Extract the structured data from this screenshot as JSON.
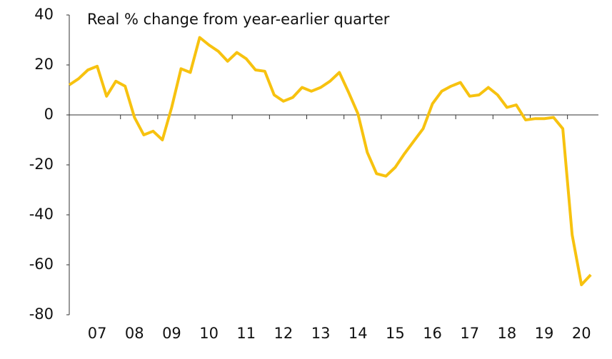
{
  "chart_data": {
    "type": "line",
    "annotation": "Real % change from year-earlier quarter",
    "categories": [
      null,
      null,
      null,
      "07",
      null,
      null,
      null,
      "08",
      null,
      null,
      null,
      "09",
      null,
      null,
      null,
      "10",
      null,
      null,
      null,
      "11",
      null,
      null,
      null,
      "12",
      null,
      null,
      null,
      "13",
      null,
      null,
      null,
      "14",
      null,
      null,
      null,
      "15",
      null,
      null,
      null,
      "16",
      null,
      null,
      null,
      "17",
      null,
      null,
      null,
      "18",
      null,
      null,
      null,
      "19",
      null,
      null,
      null,
      "20",
      null
    ],
    "series": [
      {
        "name": "Real % change",
        "color": "#f7c20f",
        "values": [
          12,
          14.5,
          18,
          19.5,
          7.5,
          13.5,
          11.5,
          -1,
          -8,
          -6.5,
          -10,
          3,
          18.5,
          17,
          31,
          28,
          25.5,
          21.5,
          25,
          22.5,
          18,
          17.5,
          8,
          5.5,
          7,
          11,
          9.5,
          11,
          13.5,
          17,
          9,
          0.5,
          -15,
          -23.5,
          -24.5,
          -21,
          -15.5,
          -10.5,
          -5.5,
          4.5,
          9.5,
          11.5,
          13,
          7.5,
          8,
          11,
          8,
          3,
          4,
          -2,
          -1.5,
          -1.5,
          -1,
          -5.5,
          -48,
          -68,
          -64
        ]
      }
    ],
    "ylim": [
      -80,
      40
    ],
    "yticks": [
      -80,
      -60,
      -40,
      -20,
      0,
      20,
      40
    ]
  }
}
